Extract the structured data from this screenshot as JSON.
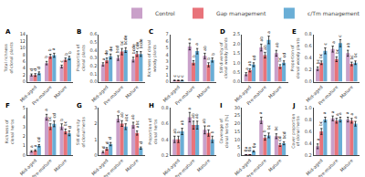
{
  "chart_data": [
    {
      "type": "bar",
      "title": "A",
      "ylabel": "Total richness of clonal plants",
      "categories": [
        "Mid-aged",
        "Pre-mature",
        "Mature"
      ],
      "ylim": [
        0,
        14
      ],
      "yticks": [
        0,
        2,
        4,
        6,
        8,
        10,
        12,
        14
      ],
      "grid": false,
      "legend": "upper right",
      "series": [
        {
          "name": "Control",
          "color": "#c9a0c9",
          "values": [
            2.0,
            5.5,
            4.5
          ],
          "errors": [
            0.3,
            0.5,
            0.4
          ],
          "sig_labels": [
            "d",
            "b",
            "c"
          ]
        },
        {
          "name": "Gap management",
          "color": "#e8737a",
          "values": [
            2.0,
            7.5,
            6.5
          ],
          "errors": [
            0.4,
            0.6,
            0.5
          ],
          "sig_labels": [
            "d",
            "b",
            "b"
          ]
        },
        {
          "name": "c/Tm management",
          "color": "#6aaed6",
          "values": [
            2.5,
            7.8,
            7.0
          ],
          "errors": [
            0.4,
            0.6,
            0.5
          ],
          "sig_labels": [
            "d",
            "a",
            "b"
          ]
        }
      ]
    },
    {
      "type": "bar",
      "title": "B",
      "ylabel": "Proportion of clonal plants",
      "categories": [
        "Mid-aged",
        "Pre-mature",
        "Mature"
      ],
      "ylim": [
        0,
        0.6
      ],
      "yticks": [
        {
          "value": 0,
          "label": "0.0"
        },
        0.1,
        0.2,
        0.3,
        0.4,
        0.5,
        0.6
      ],
      "grid": false,
      "series": [
        {
          "name": "Control",
          "color": "#c9a0c9",
          "values": [
            0.22,
            0.3,
            0.28
          ],
          "errors": [
            0.02,
            0.03,
            0.03
          ],
          "sig_labels": [
            "a",
            "bcd",
            "bcde"
          ]
        },
        {
          "name": "Gap management",
          "color": "#e8737a",
          "values": [
            0.27,
            0.38,
            0.35
          ],
          "errors": [
            0.03,
            0.04,
            0.03
          ],
          "sig_labels": [
            "de",
            "bc",
            "cde"
          ]
        },
        {
          "name": "c/Tm management",
          "color": "#6aaed6",
          "values": [
            0.32,
            0.4,
            0.35
          ],
          "errors": [
            0.03,
            0.03,
            0.03
          ],
          "sig_labels": [
            "de",
            "bcde",
            "bcde"
          ]
        }
      ]
    },
    {
      "type": "bar",
      "title": "C",
      "ylabel": "Richness of clonal woody plants",
      "categories": [
        "Mid-aged",
        "Pre-mature",
        "Mature"
      ],
      "ylim": [
        0,
        7
      ],
      "yticks": [
        0,
        1,
        2,
        3,
        4,
        5,
        6,
        7
      ],
      "grid": false,
      "series": [
        {
          "name": "Control",
          "color": "#c9a0c9",
          "values": [
            0.2,
            5.2,
            3.8
          ],
          "errors": [
            0.05,
            0.5,
            0.4
          ],
          "sig_labels": [
            "c",
            "a",
            "ab"
          ]
        },
        {
          "name": "Gap management",
          "color": "#e8737a",
          "values": [
            0.2,
            2.8,
            2.5
          ],
          "errors": [
            0.05,
            0.3,
            0.3
          ],
          "sig_labels": [
            "c",
            "b",
            "b"
          ]
        },
        {
          "name": "c/Tm management",
          "color": "#6aaed6",
          "values": [
            0.2,
            4.5,
            3.2
          ],
          "errors": [
            0.05,
            0.4,
            0.3
          ],
          "sig_labels": [
            "c",
            "a",
            "b"
          ]
        }
      ]
    },
    {
      "type": "bar",
      "title": "D",
      "ylabel": "SW diversity of clonal woody plants",
      "categories": [
        "Mid-aged",
        "Pre-mature",
        "Mature"
      ],
      "ylim": [
        0,
        2.5
      ],
      "yticks": [
        {
          "value": 0,
          "label": "0.0"
        },
        0.5,
        {
          "value": 1,
          "label": "1.0"
        },
        1.5,
        {
          "value": 2,
          "label": "2.0"
        },
        2.5
      ],
      "grid": false,
      "series": [
        {
          "name": "Control",
          "color": "#c9a0c9",
          "values": [
            0.4,
            1.8,
            1.5
          ],
          "errors": [
            0.08,
            0.18,
            0.15
          ],
          "sig_labels": [
            "a",
            "ab",
            "ab"
          ]
        },
        {
          "name": "Gap management",
          "color": "#e8737a",
          "values": [
            0.6,
            1.4,
            0.8
          ],
          "errors": [
            0.08,
            0.15,
            0.1
          ],
          "sig_labels": [
            "ab",
            "ab",
            "bc"
          ]
        },
        {
          "name": "c/Tm management",
          "color": "#6aaed6",
          "values": [
            0.9,
            2.2,
            1.0
          ],
          "errors": [
            0.1,
            0.2,
            0.1
          ],
          "sig_labels": [
            "cd",
            "a",
            "cd"
          ]
        }
      ]
    },
    {
      "type": "bar",
      "title": "E",
      "ylabel": "Proportion of clonal woody plants",
      "categories": [
        "Mid-aged",
        "Pre-mature",
        "Mature"
      ],
      "ylim": [
        0,
        0.8
      ],
      "yticks": [
        {
          "value": 0,
          "label": "0.0"
        },
        0.2,
        0.4,
        0.6,
        0.8
      ],
      "grid": false,
      "series": [
        {
          "name": "Control",
          "color": "#c9a0c9",
          "values": [
            0.22,
            0.55,
            0.48
          ],
          "errors": [
            0.03,
            0.05,
            0.05
          ],
          "sig_labels": [
            "bc",
            "a",
            "ab"
          ]
        },
        {
          "name": "Gap management",
          "color": "#e8737a",
          "values": [
            0.32,
            0.38,
            0.3
          ],
          "errors": [
            0.03,
            0.04,
            0.03
          ],
          "sig_labels": [
            "bc",
            "bc",
            "bc"
          ]
        },
        {
          "name": "c/Tm management",
          "color": "#6aaed6",
          "values": [
            0.52,
            0.65,
            0.32
          ],
          "errors": [
            0.05,
            0.06,
            0.03
          ],
          "sig_labels": [
            "c",
            "c",
            "bc"
          ]
        }
      ]
    },
    {
      "type": "bar",
      "title": "F",
      "ylabel": "Richness of clonal herbs",
      "categories": [
        "Mid-aged",
        "Pre-mature",
        "Mature"
      ],
      "ylim": [
        0,
        5
      ],
      "yticks": [
        0,
        1,
        2,
        3,
        4,
        5
      ],
      "grid": false,
      "series": [
        {
          "name": "Control",
          "color": "#c9a0c9",
          "values": [
            0.4,
            4.0,
            3.0
          ],
          "errors": [
            0.08,
            0.3,
            0.3
          ],
          "sig_labels": [
            "a",
            "a",
            "b"
          ]
        },
        {
          "name": "Gap management",
          "color": "#e8737a",
          "values": [
            0.5,
            3.0,
            2.5
          ],
          "errors": [
            0.08,
            0.3,
            0.25
          ],
          "sig_labels": [
            "a",
            "bc",
            "bc"
          ]
        },
        {
          "name": "c/Tm management",
          "color": "#6aaed6",
          "values": [
            1.0,
            3.3,
            2.3
          ],
          "errors": [
            0.12,
            0.3,
            0.25
          ],
          "sig_labels": [
            "cd",
            "cd",
            "d"
          ]
        }
      ]
    },
    {
      "type": "bar",
      "title": "G",
      "ylabel": "SW diversity of clonal herbs",
      "categories": [
        "Mid-aged",
        "Pre-mature",
        "Mature"
      ],
      "ylim": [
        0,
        3
      ],
      "yticks": [
        0,
        1,
        2,
        3
      ],
      "grid": false,
      "series": [
        {
          "name": "Control",
          "color": "#c9a0c9",
          "values": [
            0.2,
            2.3,
            1.9
          ],
          "errors": [
            0.05,
            0.2,
            0.18
          ],
          "sig_labels": [
            "d",
            "a",
            "ab"
          ]
        },
        {
          "name": "Gap management",
          "color": "#e8737a",
          "values": [
            0.4,
            2.0,
            1.4
          ],
          "errors": [
            0.08,
            0.18,
            0.13
          ],
          "sig_labels": [
            "d",
            "ab",
            "abc"
          ]
        },
        {
          "name": "c/Tm management",
          "color": "#6aaed6",
          "values": [
            0.7,
            1.8,
            0.45
          ],
          "errors": [
            0.1,
            0.18,
            0.07
          ],
          "sig_labels": [
            "d",
            "abc",
            "d"
          ]
        }
      ]
    },
    {
      "type": "bar",
      "title": "H",
      "ylabel": "Proportion of clonal herbs",
      "categories": [
        "Mid-aged",
        "Pre-mature",
        "Mature"
      ],
      "ylim": [
        0.2,
        0.8
      ],
      "yticks": [
        0.2,
        0.4,
        0.6,
        0.8
      ],
      "grid": false,
      "series": [
        {
          "name": "Control",
          "color": "#c9a0c9",
          "values": [
            0.4,
            0.68,
            0.52
          ],
          "errors": [
            0.04,
            0.06,
            0.05
          ],
          "sig_labels": [
            "ab",
            "a",
            "ab"
          ]
        },
        {
          "name": "Gap management",
          "color": "#e8737a",
          "values": [
            0.4,
            0.58,
            0.48
          ],
          "errors": [
            0.04,
            0.05,
            0.04
          ],
          "sig_labels": [
            "b",
            "ab",
            "b"
          ]
        },
        {
          "name": "c/Tm management",
          "color": "#6aaed6",
          "values": [
            0.5,
            0.58,
            0.4
          ],
          "errors": [
            0.04,
            0.05,
            0.04
          ],
          "sig_labels": [
            "ab",
            "ab",
            "b"
          ]
        }
      ]
    },
    {
      "type": "bar",
      "title": "I",
      "ylabel": "Coverage of clonal herbs (%)",
      "categories": [
        "Mid-aged",
        "Pre-mature",
        "Mature"
      ],
      "ylim": [
        0,
        30
      ],
      "yticks": [
        0,
        5,
        10,
        15,
        20,
        25,
        30
      ],
      "grid": false,
      "series": [
        {
          "name": "Control",
          "color": "#c9a0c9",
          "values": [
            0.3,
            22.0,
            12.0
          ],
          "errors": [
            0.08,
            2.0,
            1.5
          ],
          "sig_labels": [
            "0a",
            "a",
            "bc"
          ]
        },
        {
          "name": "Gap management",
          "color": "#e8737a",
          "values": [
            0.3,
            11.0,
            6.5
          ],
          "errors": [
            0.08,
            1.5,
            0.9
          ],
          "sig_labels": [
            "0a",
            "b",
            "cd"
          ]
        },
        {
          "name": "c/Tm management",
          "color": "#6aaed6",
          "values": [
            2.5,
            12.5,
            7.5
          ],
          "errors": [
            0.35,
            1.5,
            0.9
          ],
          "sig_labels": [
            "0a",
            "bc",
            "bcd"
          ]
        }
      ]
    },
    {
      "type": "bar",
      "title": "J",
      "ylabel": "Cover proportion of clonal herbs",
      "categories": [
        "Mid-aged",
        "Pre-mature",
        "Mature"
      ],
      "ylim": [
        0.2,
        1.0
      ],
      "yticks": [
        0.2,
        0.4,
        0.6,
        0.8,
        {
          "value": 1,
          "label": "1.0"
        }
      ],
      "grid": false,
      "series": [
        {
          "name": "Control",
          "color": "#c9a0c9",
          "values": [
            0.35,
            0.82,
            0.8
          ],
          "errors": [
            0.04,
            0.04,
            0.04
          ],
          "sig_labels": [
            "a",
            "a",
            "a"
          ]
        },
        {
          "name": "Gap management",
          "color": "#e8737a",
          "values": [
            0.6,
            0.78,
            0.78
          ],
          "errors": [
            0.05,
            0.04,
            0.04
          ],
          "sig_labels": [
            "bc",
            "a",
            "a"
          ]
        },
        {
          "name": "c/Tm management",
          "color": "#6aaed6",
          "values": [
            0.8,
            0.8,
            0.73
          ],
          "errors": [
            0.04,
            0.04,
            0.04
          ],
          "sig_labels": [
            "a",
            "a",
            "a"
          ]
        }
      ]
    }
  ]
}
